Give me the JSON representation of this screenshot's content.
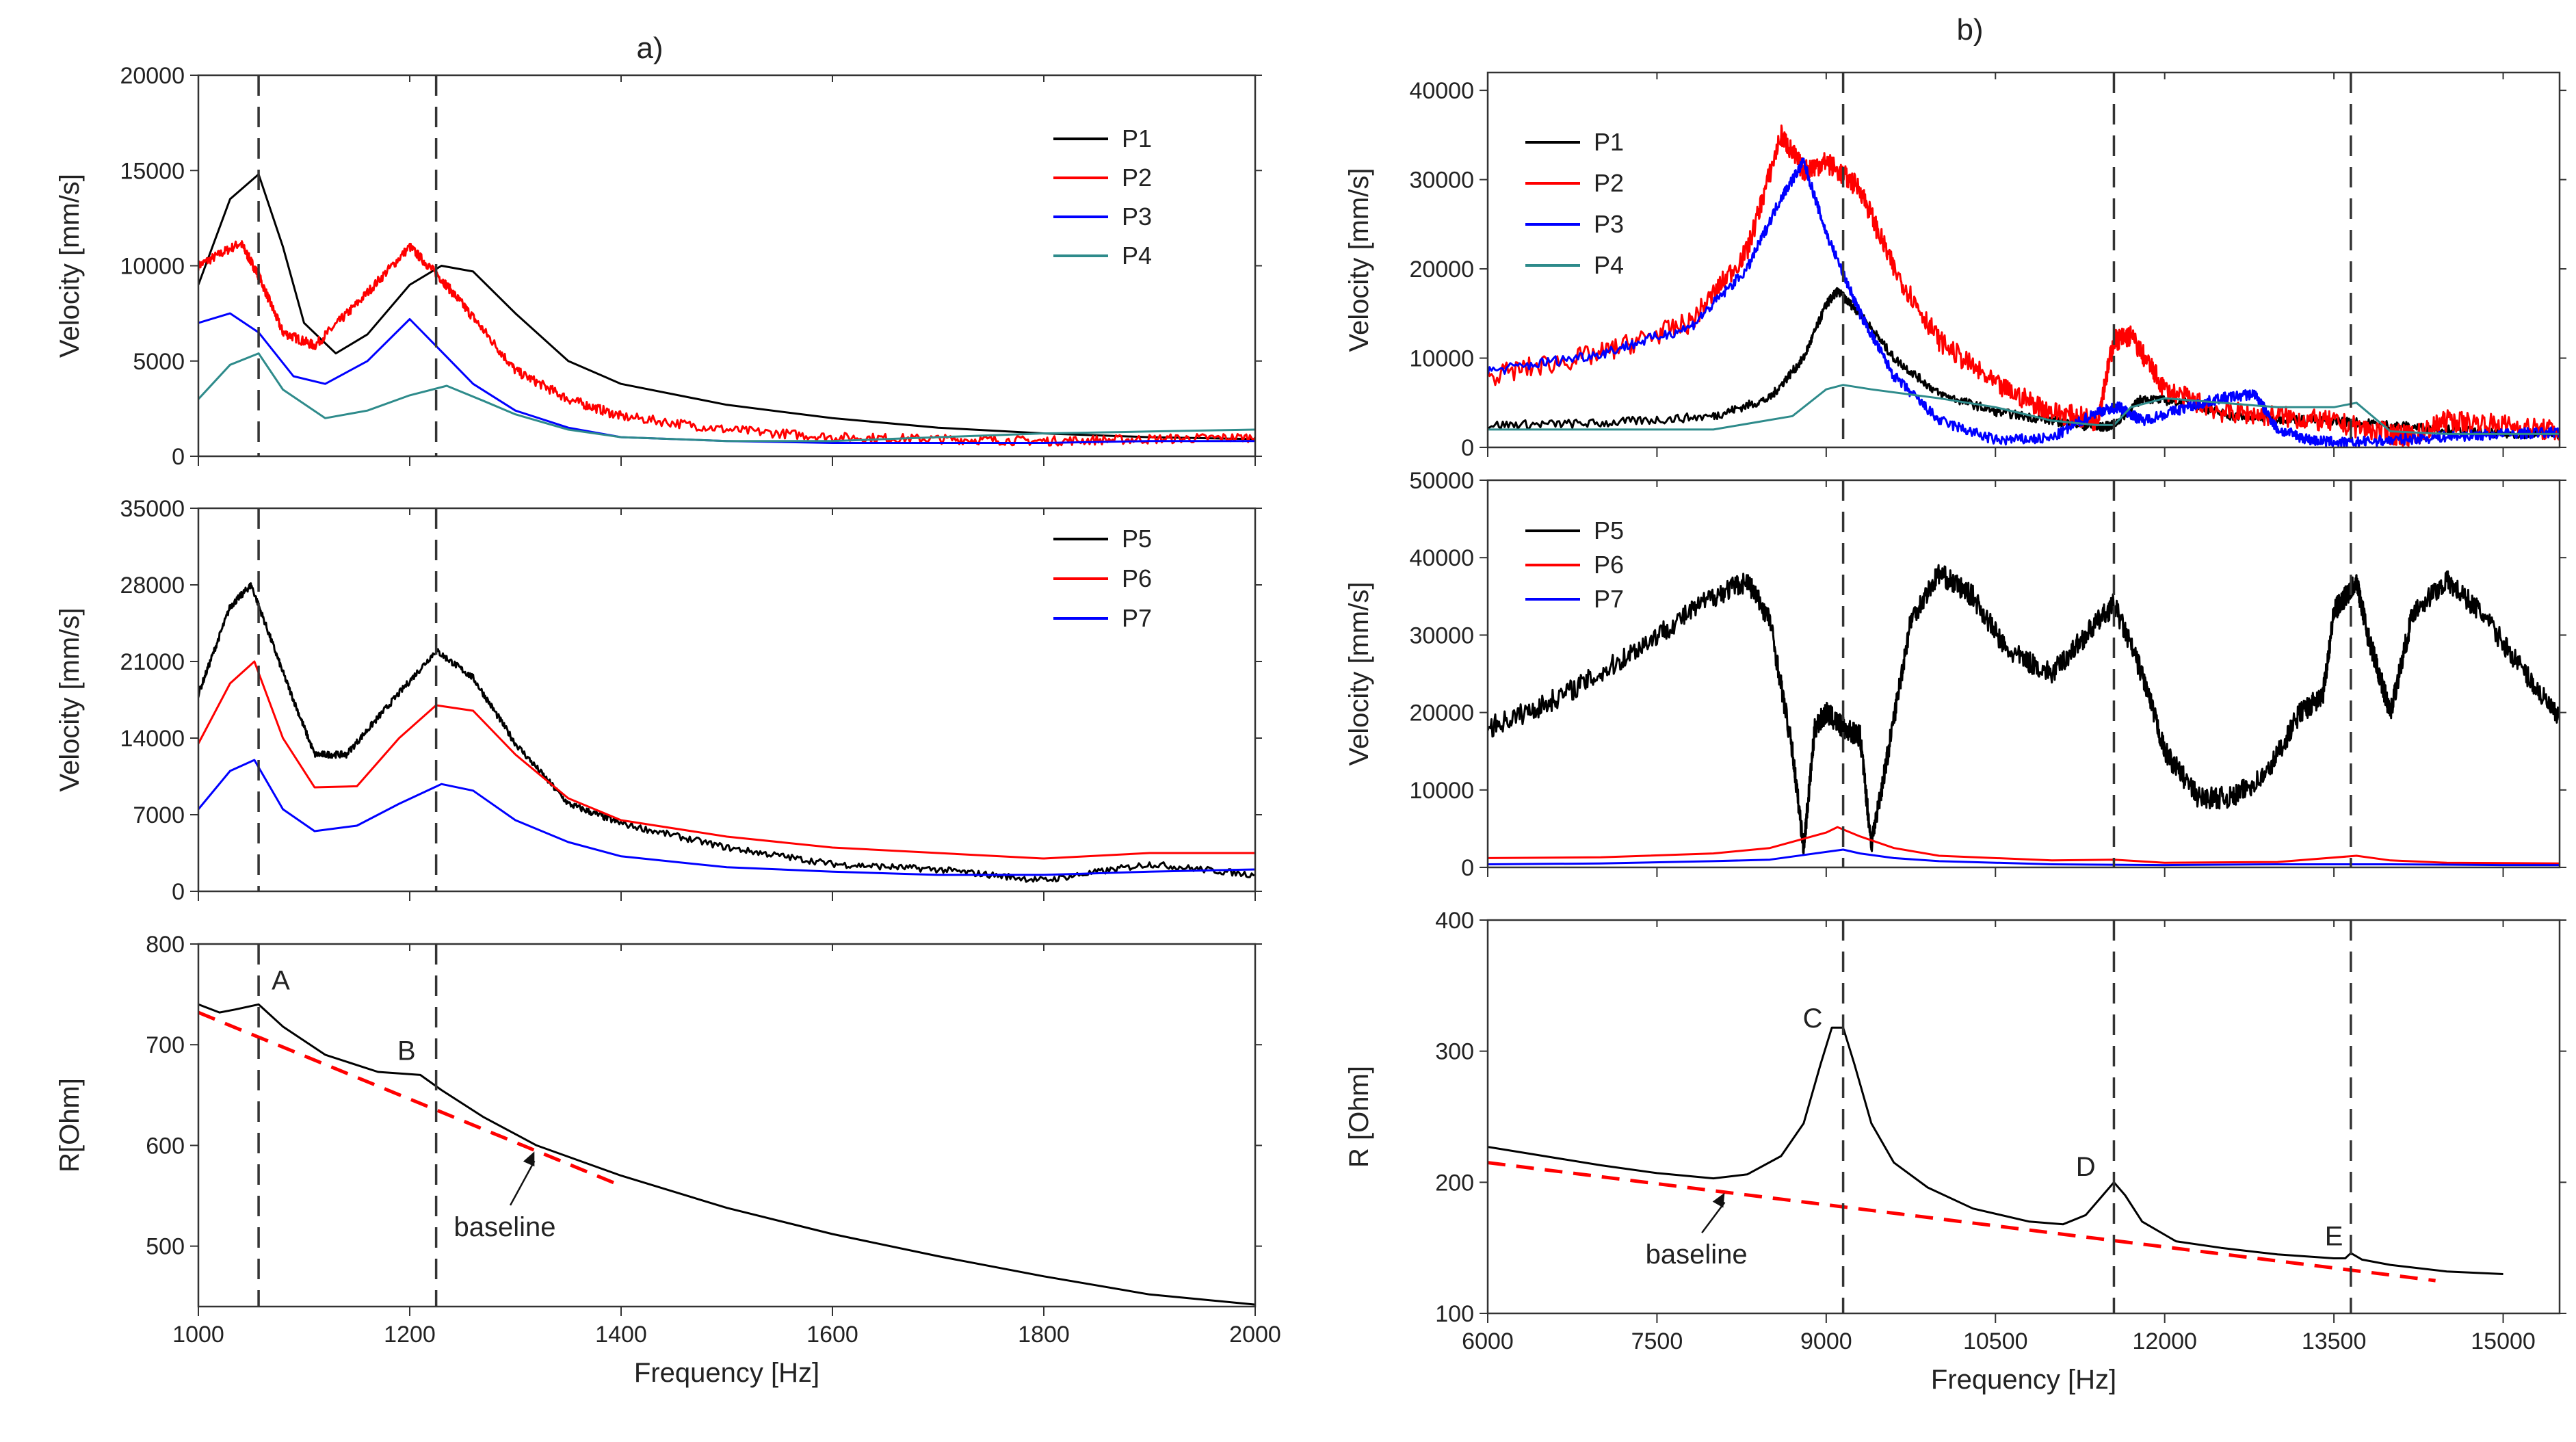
{
  "chart_data": [
    {
      "id": "a-top",
      "type": "line",
      "panel_title": "a)",
      "ylabel": "Velocity [mm/s]",
      "xlabel": "",
      "xlim": [
        1000,
        2000
      ],
      "ylim": [
        0,
        20000
      ],
      "xticks": [
        1000,
        1200,
        1400,
        1600,
        1800,
        2000
      ],
      "yticks": [
        0,
        5000,
        10000,
        15000,
        20000
      ],
      "show_xtick_labels": false,
      "legend_position": "top-right",
      "vlines": [
        1057,
        1225
      ],
      "series": [
        {
          "name": "P1",
          "color": "#000000",
          "x": [
            1000,
            1030,
            1057,
            1080,
            1100,
            1130,
            1160,
            1200,
            1230,
            1260,
            1300,
            1350,
            1400,
            1500,
            1600,
            1700,
            1800,
            1900,
            2000
          ],
          "y": [
            9000,
            13500,
            14800,
            11000,
            7000,
            5400,
            6400,
            9000,
            10000,
            9700,
            7500,
            5000,
            3800,
            2700,
            2000,
            1500,
            1200,
            1000,
            900
          ]
        },
        {
          "name": "P2",
          "color": "#ff0000",
          "x": [
            1000,
            1040,
            1057,
            1080,
            1110,
            1150,
            1200,
            1230,
            1260,
            1300,
            1350,
            1400,
            1500,
            1600,
            1700,
            1800,
            1900,
            2000
          ],
          "y": [
            10000,
            11200,
            9500,
            6500,
            5800,
            8000,
            11000,
            9300,
            7300,
            4500,
            3000,
            2100,
            1400,
            1000,
            900,
            800,
            900,
            1000
          ]
        },
        {
          "name": "P3",
          "color": "#0000ff",
          "x": [
            1000,
            1030,
            1057,
            1090,
            1120,
            1160,
            1200,
            1230,
            1260,
            1300,
            1350,
            1400,
            1500,
            1600,
            1700,
            1800,
            1900,
            2000
          ],
          "y": [
            7000,
            7500,
            6500,
            4200,
            3800,
            5000,
            7200,
            5500,
            3800,
            2400,
            1500,
            1000,
            800,
            700,
            700,
            700,
            800,
            800
          ]
        },
        {
          "name": "P4",
          "color": "#2e8b8b",
          "x": [
            1000,
            1030,
            1057,
            1080,
            1120,
            1160,
            1200,
            1235,
            1270,
            1300,
            1350,
            1400,
            1500,
            1600,
            1700,
            1800,
            1900,
            2000
          ],
          "y": [
            3000,
            4800,
            5400,
            3500,
            2000,
            2400,
            3200,
            3700,
            2900,
            2200,
            1400,
            1000,
            800,
            800,
            1000,
            1200,
            1300,
            1400
          ]
        }
      ]
    },
    {
      "id": "a-mid",
      "type": "line",
      "ylabel": "Velocity [mm/s]",
      "xlabel": "",
      "xlim": [
        1000,
        2000
      ],
      "ylim": [
        0,
        35000
      ],
      "xticks": [
        1000,
        1200,
        1400,
        1600,
        1800,
        2000
      ],
      "yticks": [
        0,
        7000,
        14000,
        21000,
        28000,
        35000
      ],
      "show_xtick_labels": false,
      "legend_position": "top-right",
      "vlines": [
        1057,
        1225
      ],
      "series": [
        {
          "name": "P5",
          "color": "#000000",
          "x": [
            1000,
            1030,
            1050,
            1080,
            1110,
            1140,
            1180,
            1225,
            1260,
            1300,
            1350,
            1400,
            1500,
            1600,
            1700,
            1800,
            1900,
            2000
          ],
          "y": [
            18000,
            26000,
            28000,
            20000,
            12500,
            12500,
            17000,
            22000,
            19500,
            13500,
            8000,
            6200,
            4000,
            2500,
            2000,
            1000,
            2500,
            1500
          ]
        },
        {
          "name": "P6",
          "color": "#ff0000",
          "x": [
            1000,
            1030,
            1053,
            1080,
            1110,
            1150,
            1190,
            1225,
            1260,
            1300,
            1350,
            1400,
            1500,
            1600,
            1700,
            1800,
            1900,
            2000
          ],
          "y": [
            13500,
            19000,
            21000,
            14000,
            9500,
            9600,
            14000,
            17000,
            16500,
            12500,
            8500,
            6500,
            5000,
            4000,
            3500,
            3000,
            3500,
            3500
          ]
        },
        {
          "name": "P7",
          "color": "#0000ff",
          "x": [
            1000,
            1030,
            1053,
            1080,
            1110,
            1150,
            1190,
            1230,
            1260,
            1300,
            1350,
            1400,
            1500,
            1600,
            1700,
            1800,
            1900,
            2000
          ],
          "y": [
            7500,
            11000,
            12000,
            7500,
            5500,
            6000,
            8000,
            9800,
            9200,
            6500,
            4500,
            3200,
            2200,
            1800,
            1500,
            1500,
            1800,
            2000
          ]
        }
      ]
    },
    {
      "id": "a-bot",
      "type": "line",
      "ylabel": "R[Ohm]",
      "xlabel": "Frequency [Hz]",
      "xlim": [
        1000,
        2000
      ],
      "ylim": [
        440,
        800
      ],
      "xticks": [
        1000,
        1200,
        1400,
        1600,
        1800,
        2000
      ],
      "yticks": [
        500,
        600,
        700,
        800
      ],
      "show_xtick_labels": true,
      "vlines": [
        1057,
        1225
      ],
      "series": [
        {
          "name": "R",
          "color": "#000000",
          "x": [
            1000,
            1020,
            1035,
            1057,
            1080,
            1120,
            1170,
            1210,
            1230,
            1270,
            1320,
            1400,
            1500,
            1600,
            1700,
            1800,
            1900,
            2000
          ],
          "y": [
            740,
            732,
            735,
            740,
            718,
            690,
            673,
            670,
            655,
            628,
            600,
            570,
            538,
            512,
            490,
            470,
            452,
            442
          ]
        },
        {
          "name": "baseline",
          "color": "#ff0000",
          "dashed": true,
          "x": [
            1000,
            1400
          ],
          "y": [
            732,
            560
          ]
        }
      ],
      "annotations": [
        {
          "text": "A",
          "x": 1078,
          "y": 755
        },
        {
          "text": "B",
          "x": 1197,
          "y": 685
        },
        {
          "text": "baseline",
          "x": 1290,
          "y": 510,
          "arrow_to": [
            1318,
            594
          ]
        }
      ]
    },
    {
      "id": "b-top",
      "type": "line",
      "panel_title": "b)",
      "ylabel": "Velocity [mm/s]",
      "xlabel": "",
      "xlim": [
        6000,
        15500
      ],
      "ylim": [
        0,
        42000
      ],
      "xticks": [
        6000,
        7500,
        9000,
        10500,
        12000,
        13500,
        15000
      ],
      "yticks": [
        0,
        10000,
        20000,
        30000,
        40000
      ],
      "show_xtick_labels": false,
      "legend_position": "top-left",
      "vlines": [
        9150,
        11550,
        13650
      ],
      "series": [
        {
          "name": "P1",
          "color": "#000000",
          "x": [
            6000,
            7000,
            8000,
            8500,
            8800,
            9000,
            9100,
            9300,
            9600,
            10000,
            10500,
            11000,
            11400,
            11550,
            11800,
            12200,
            12600,
            13000,
            13500,
            14000,
            14500,
            15000,
            15500
          ],
          "y": [
            2500,
            2700,
            3500,
            5500,
            10000,
            16000,
            17500,
            15000,
            10000,
            6000,
            4000,
            3000,
            2200,
            2500,
            5500,
            5000,
            3500,
            3200,
            3000,
            2500,
            2000,
            1500,
            1500
          ]
        },
        {
          "name": "P2",
          "color": "#ff0000",
          "x": [
            6000,
            7000,
            7800,
            8300,
            8600,
            8800,
            9000,
            9300,
            9600,
            10000,
            10500,
            11000,
            11400,
            11550,
            11700,
            12000,
            12500,
            13000,
            13500,
            14000,
            14200,
            14500,
            15000,
            15500
          ],
          "y": [
            8000,
            10500,
            14000,
            22000,
            35000,
            31000,
            32000,
            29000,
            20000,
            12000,
            7000,
            4000,
            3000,
            12000,
            12500,
            6500,
            4000,
            3500,
            2800,
            1500,
            1200,
            3000,
            2500,
            1800
          ]
        },
        {
          "name": "P3",
          "color": "#0000ff",
          "x": [
            6000,
            7000,
            7800,
            8300,
            8600,
            8800,
            9000,
            9300,
            9600,
            10000,
            10500,
            11000,
            11400,
            11600,
            11800,
            12200,
            12500,
            12800,
            13000,
            13300,
            13600,
            14000,
            14500,
            15000,
            15500
          ],
          "y": [
            8500,
            10500,
            13500,
            20000,
            28000,
            32000,
            24000,
            15000,
            8000,
            3000,
            800,
            1000,
            4000,
            4500,
            3000,
            4500,
            5500,
            6000,
            2000,
            800,
            500,
            800,
            1200,
            1500,
            1700
          ]
        },
        {
          "name": "P4",
          "color": "#2e8b8b",
          "x": [
            6000,
            7000,
            8000,
            8700,
            9000,
            9150,
            9400,
            10000,
            10500,
            11000,
            11400,
            11550,
            11700,
            12000,
            12500,
            13000,
            13500,
            13700,
            14000,
            14500,
            15000,
            15500
          ],
          "y": [
            2000,
            2000,
            2000,
            3500,
            6500,
            7000,
            6500,
            5500,
            4500,
            3000,
            2500,
            2500,
            4500,
            5500,
            5000,
            4500,
            4500,
            5000,
            1800,
            1500,
            1500,
            1500
          ]
        }
      ]
    },
    {
      "id": "b-mid",
      "type": "line",
      "ylabel": "Velocity [mm/s]",
      "xlabel": "",
      "xlim": [
        6000,
        15500
      ],
      "ylim": [
        0,
        50000
      ],
      "xticks": [
        6000,
        7500,
        9000,
        10500,
        12000,
        13500,
        15000
      ],
      "yticks": [
        0,
        10000,
        20000,
        30000,
        40000,
        50000
      ],
      "show_xtick_labels": false,
      "legend_position": "top-left",
      "vlines": [
        9150,
        11550,
        13650
      ],
      "series": [
        {
          "name": "P5",
          "color": "#000000",
          "x": [
            6000,
            6500,
            7000,
            7500,
            8000,
            8300,
            8500,
            8700,
            8800,
            8900,
            9000,
            9150,
            9300,
            9400,
            9550,
            9750,
            10000,
            10300,
            10600,
            11000,
            11300,
            11550,
            11800,
            12000,
            12300,
            12600,
            12900,
            13200,
            13400,
            13500,
            13600,
            13700,
            13800,
            13900,
            14000,
            14200,
            14500,
            14800,
            15200,
            15500
          ],
          "y": [
            18000,
            21000,
            25000,
            30000,
            35000,
            37000,
            32000,
            15000,
            2500,
            18000,
            20000,
            18000,
            17000,
            3000,
            15000,
            32000,
            38000,
            35000,
            28000,
            25000,
            30000,
            34000,
            25000,
            15000,
            9000,
            9000,
            12000,
            20000,
            22000,
            33000,
            35000,
            37000,
            30000,
            25000,
            20000,
            33000,
            37000,
            33000,
            25000,
            19000
          ]
        },
        {
          "name": "P6",
          "color": "#ff0000",
          "x": [
            6000,
            7000,
            8000,
            8500,
            9000,
            9100,
            9300,
            9600,
            10000,
            11000,
            11550,
            12000,
            13000,
            13700,
            14000,
            14500,
            15500
          ],
          "y": [
            1200,
            1300,
            1800,
            2500,
            4500,
            5200,
            4000,
            2500,
            1500,
            900,
            1000,
            600,
            700,
            1500,
            900,
            600,
            500
          ]
        },
        {
          "name": "P7",
          "color": "#0000ff",
          "x": [
            6000,
            7000,
            8000,
            8500,
            9000,
            9150,
            9300,
            9600,
            10000,
            11000,
            12000,
            13000,
            14000,
            15000,
            15500
          ],
          "y": [
            400,
            500,
            800,
            1000,
            2000,
            2300,
            1800,
            1200,
            800,
            400,
            300,
            400,
            400,
            300,
            300
          ]
        }
      ]
    },
    {
      "id": "b-bot",
      "type": "line",
      "ylabel": "R [Ohm]",
      "xlabel": "Frequency [Hz]",
      "xlim": [
        6000,
        15500
      ],
      "ylim": [
        100,
        400
      ],
      "xticks": [
        6000,
        7500,
        9000,
        10500,
        12000,
        13500,
        15000
      ],
      "yticks": [
        100,
        200,
        300,
        400
      ],
      "show_xtick_labels": true,
      "vlines": [
        9150,
        11550,
        13650
      ],
      "series": [
        {
          "name": "R",
          "color": "#000000",
          "x": [
            6000,
            6500,
            7000,
            7500,
            8000,
            8300,
            8600,
            8800,
            8950,
            9050,
            9150,
            9250,
            9400,
            9600,
            9900,
            10300,
            10800,
            11100,
            11300,
            11450,
            11550,
            11650,
            11800,
            12100,
            12500,
            13000,
            13500,
            13600,
            13650,
            13750,
            14000,
            14500,
            15000
          ],
          "y": [
            227,
            220,
            213,
            207,
            203,
            206,
            220,
            245,
            290,
            318,
            318,
            290,
            245,
            215,
            196,
            180,
            170,
            168,
            175,
            190,
            200,
            190,
            170,
            155,
            150,
            145,
            142,
            142,
            146,
            141,
            137,
            132,
            130
          ]
        },
        {
          "name": "baseline",
          "color": "#ff0000",
          "dashed": true,
          "x": [
            6000,
            14400
          ],
          "y": [
            215,
            125
          ]
        }
      ],
      "annotations": [
        {
          "text": "C",
          "x": 8880,
          "y": 318
        },
        {
          "text": "D",
          "x": 11300,
          "y": 205
        },
        {
          "text": "E",
          "x": 13500,
          "y": 152
        },
        {
          "text": "baseline",
          "x": 7850,
          "y": 138,
          "arrow_to": [
            8100,
            192
          ]
        }
      ]
    }
  ]
}
